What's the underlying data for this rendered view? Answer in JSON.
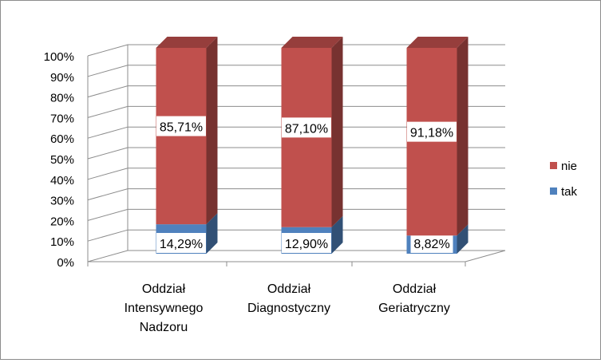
{
  "chart_data": {
    "type": "bar",
    "stacked": true,
    "three_d": true,
    "categories": [
      [
        "Oddział",
        "Intensywnego",
        "Nadzoru"
      ],
      [
        "Oddział",
        "Diagnostyczny"
      ],
      [
        "Oddział",
        "Geriatryczny"
      ]
    ],
    "series": [
      {
        "name": "tak",
        "values": [
          14.29,
          12.9,
          8.82
        ],
        "labels": [
          "14,29%",
          "12,90%",
          "8,82%"
        ],
        "color": "#4f81bd"
      },
      {
        "name": "nie",
        "values": [
          85.71,
          87.1,
          91.18
        ],
        "labels": [
          "85,71%",
          "87,10%",
          "91,18%"
        ],
        "color": "#c0504d"
      }
    ],
    "y_ticks": [
      "0%",
      "10%",
      "20%",
      "30%",
      "40%",
      "50%",
      "60%",
      "70%",
      "80%",
      "90%",
      "100%"
    ],
    "ylim": [
      0,
      100
    ],
    "grid": true,
    "legend_position": "right",
    "legend": [
      {
        "name": "nie",
        "color": "#c0504d"
      },
      {
        "name": "tak",
        "color": "#4f81bd"
      }
    ]
  }
}
